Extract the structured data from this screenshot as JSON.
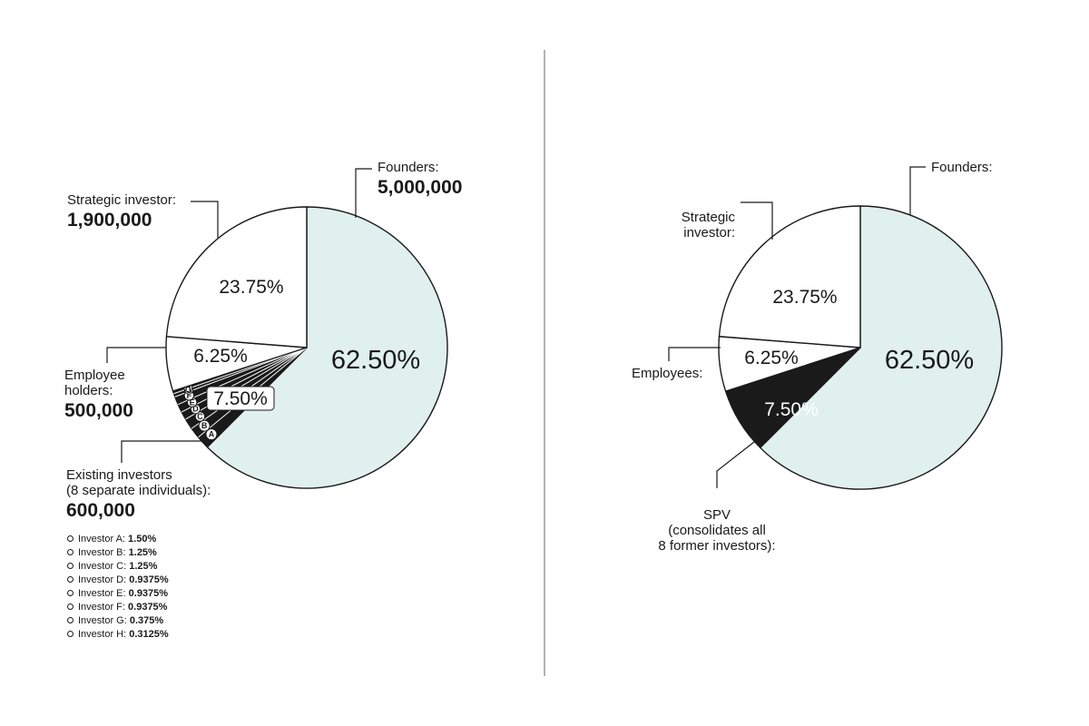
{
  "chart_data": [
    {
      "type": "pie",
      "slices": [
        {
          "key": "founders",
          "label": "Founders:",
          "value": 5000000,
          "pct": 62.5,
          "pct_label": "62.50%",
          "color": "#e0f0ee"
        },
        {
          "key": "existing",
          "label": "Existing investors\n(8 separate individuals):",
          "value": 600000,
          "pct": 7.5,
          "pct_label": "7.50%",
          "color": "#1a1a1a"
        },
        {
          "key": "employees",
          "label": "Employee\nholders:",
          "value": 500000,
          "pct": 6.25,
          "pct_label": "6.25%",
          "color": "#ffffff"
        },
        {
          "key": "strategic",
          "label": "Strategic investor:",
          "value": 1900000,
          "pct": 23.75,
          "pct_label": "23.75%",
          "color": "#ffffff"
        }
      ],
      "value_labels": {
        "founders": "5,000,000",
        "strategic": "1,900,000",
        "employees": "500,000",
        "existing": "600,000"
      },
      "sub_slices": [
        {
          "badge": "A",
          "name": "Investor A:",
          "pct": 1.5,
          "pct_label": "1.50%"
        },
        {
          "badge": "B",
          "name": "Investor B:",
          "pct": 1.25,
          "pct_label": "1.25%"
        },
        {
          "badge": "C",
          "name": "Investor C:",
          "pct": 1.25,
          "pct_label": "1.25%"
        },
        {
          "badge": "D",
          "name": "Investor D:",
          "pct": 0.9375,
          "pct_label": "0.9375%"
        },
        {
          "badge": "E",
          "name": "Investor E:",
          "pct": 0.9375,
          "pct_label": "0.9375%"
        },
        {
          "badge": "F",
          "name": "Investor F:",
          "pct": 0.9375,
          "pct_label": "0.9375%"
        },
        {
          "badge": "G",
          "name": "Investor G:",
          "pct": 0.375,
          "pct_label": "0.375%"
        },
        {
          "badge": "H",
          "name": "Investor H:",
          "pct": 0.3125,
          "pct_label": "0.3125%"
        }
      ]
    },
    {
      "type": "pie",
      "slices": [
        {
          "key": "founders",
          "label": "Founders:",
          "pct": 62.5,
          "pct_label": "62.50%",
          "color": "#e0f0ee"
        },
        {
          "key": "spv",
          "label": "SPV\n(consolidates all\n8 former investors):",
          "pct": 7.5,
          "pct_label": "7.50%",
          "color": "#1a1a1a"
        },
        {
          "key": "employees",
          "label": "Employees:",
          "pct": 6.25,
          "pct_label": "6.25%",
          "color": "#ffffff"
        },
        {
          "key": "strategic",
          "label": "Strategic\ninvestor:",
          "pct": 23.75,
          "pct_label": "23.75%",
          "color": "#ffffff"
        }
      ]
    }
  ],
  "colors": {
    "stroke": "#1a1a1a",
    "divider": "#999999",
    "founders_fill": "#e0f0ee",
    "background": "#ffffff"
  }
}
